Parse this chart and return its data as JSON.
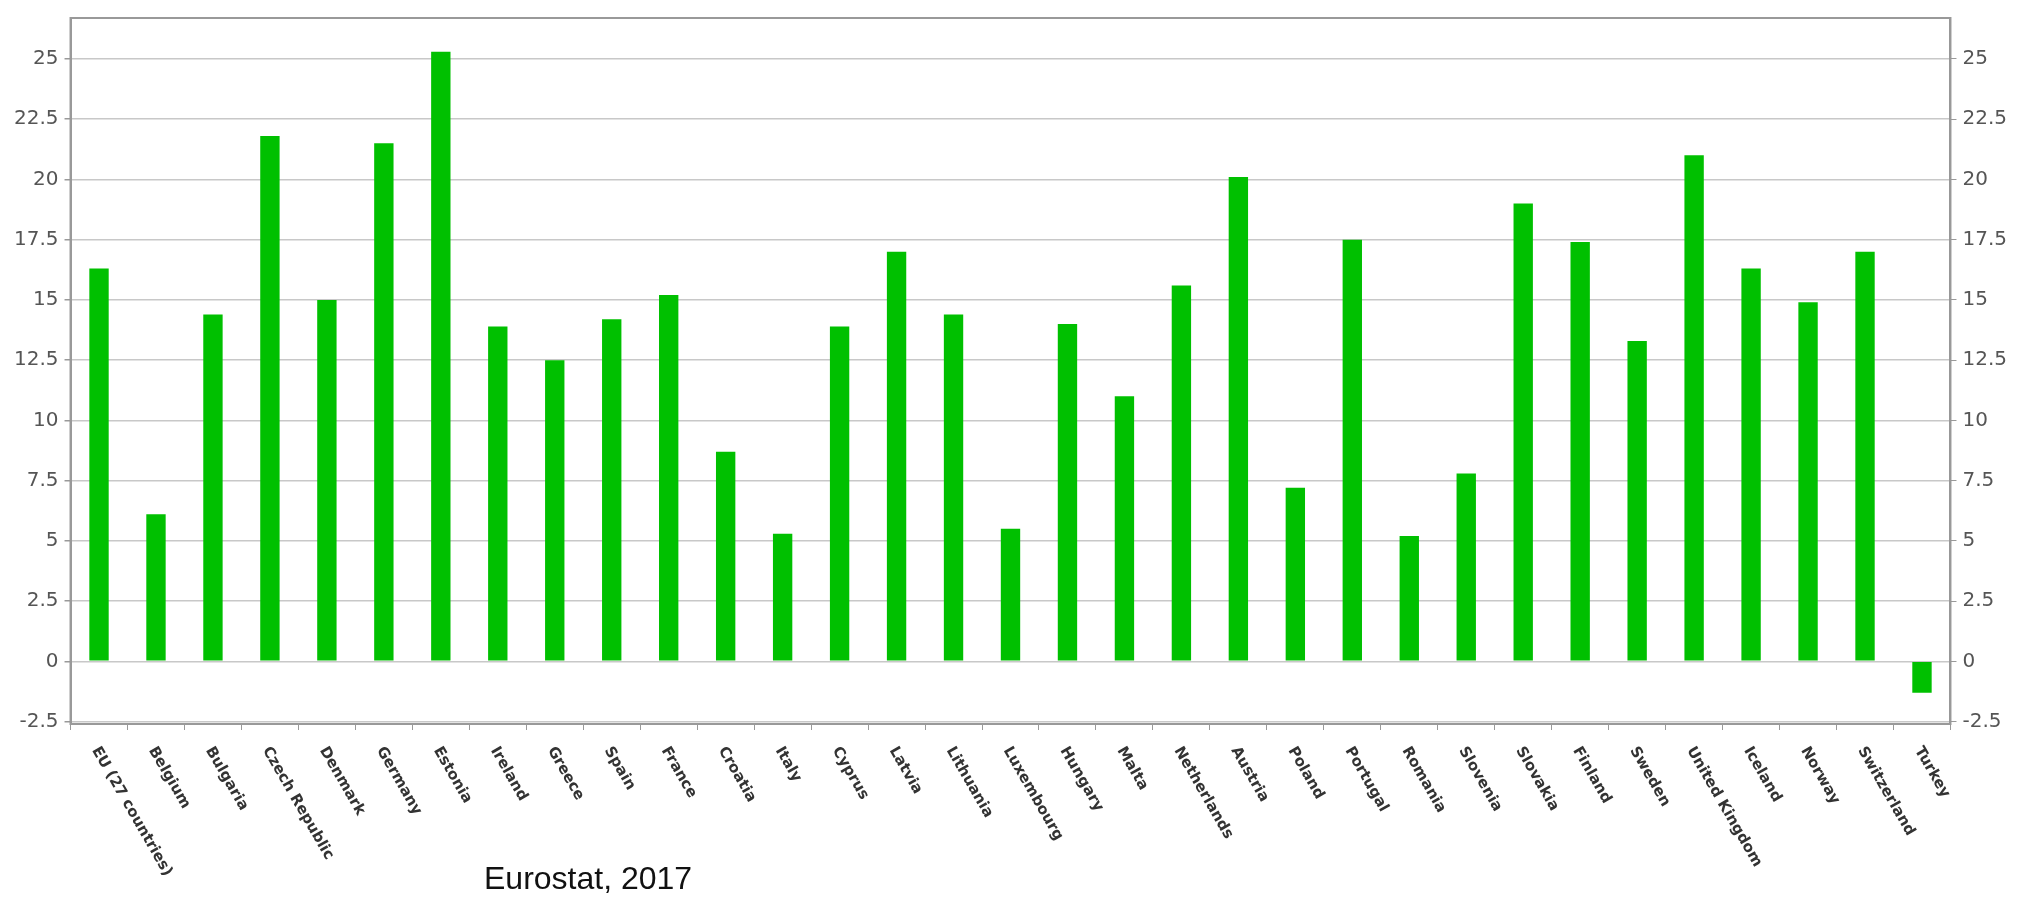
{
  "chart_data": {
    "type": "bar",
    "categories": [
      "EU (27 countries)",
      "Belgium",
      "Bulgaria",
      "Czech Republic",
      "Denmark",
      "Germany",
      "Estonia",
      "Ireland",
      "Greece",
      "Spain",
      "France",
      "Croatia",
      "Italy",
      "Cyprus",
      "Latvia",
      "Lithuania",
      "Luxembourg",
      "Hungary",
      "Malta",
      "Netherlands",
      "Austria",
      "Poland",
      "Portugal",
      "Romania",
      "Slovenia",
      "Slovakia",
      "Finland",
      "Sweden",
      "United Kingdom",
      "Iceland",
      "Norway",
      "Switzerland",
      "Turkey"
    ],
    "values": [
      16.3,
      6.1,
      14.4,
      21.8,
      15.0,
      21.5,
      25.3,
      13.9,
      12.5,
      14.2,
      15.2,
      8.7,
      5.3,
      13.9,
      17.0,
      14.4,
      5.5,
      14.0,
      11.0,
      15.6,
      20.1,
      7.2,
      17.5,
      5.2,
      7.8,
      19.0,
      17.4,
      13.3,
      21.0,
      16.3,
      14.9,
      17.0,
      -1.3
    ],
    "color": "#00c000",
    "ylim": [
      -2.6,
      26.7
    ],
    "yticks": [
      -2.5,
      0,
      2.5,
      5,
      7.5,
      10,
      12.5,
      15,
      17.5,
      20,
      22.5,
      25
    ],
    "y2lim": [
      -2.6,
      26.7
    ],
    "y2ticks": [
      -2.5,
      0,
      2.5,
      5,
      7.5,
      10,
      12.5,
      15,
      17.5,
      20,
      22.5,
      25
    ],
    "grid": "y",
    "legend": false,
    "annotations": [
      "Eurostat, 2017"
    ]
  }
}
